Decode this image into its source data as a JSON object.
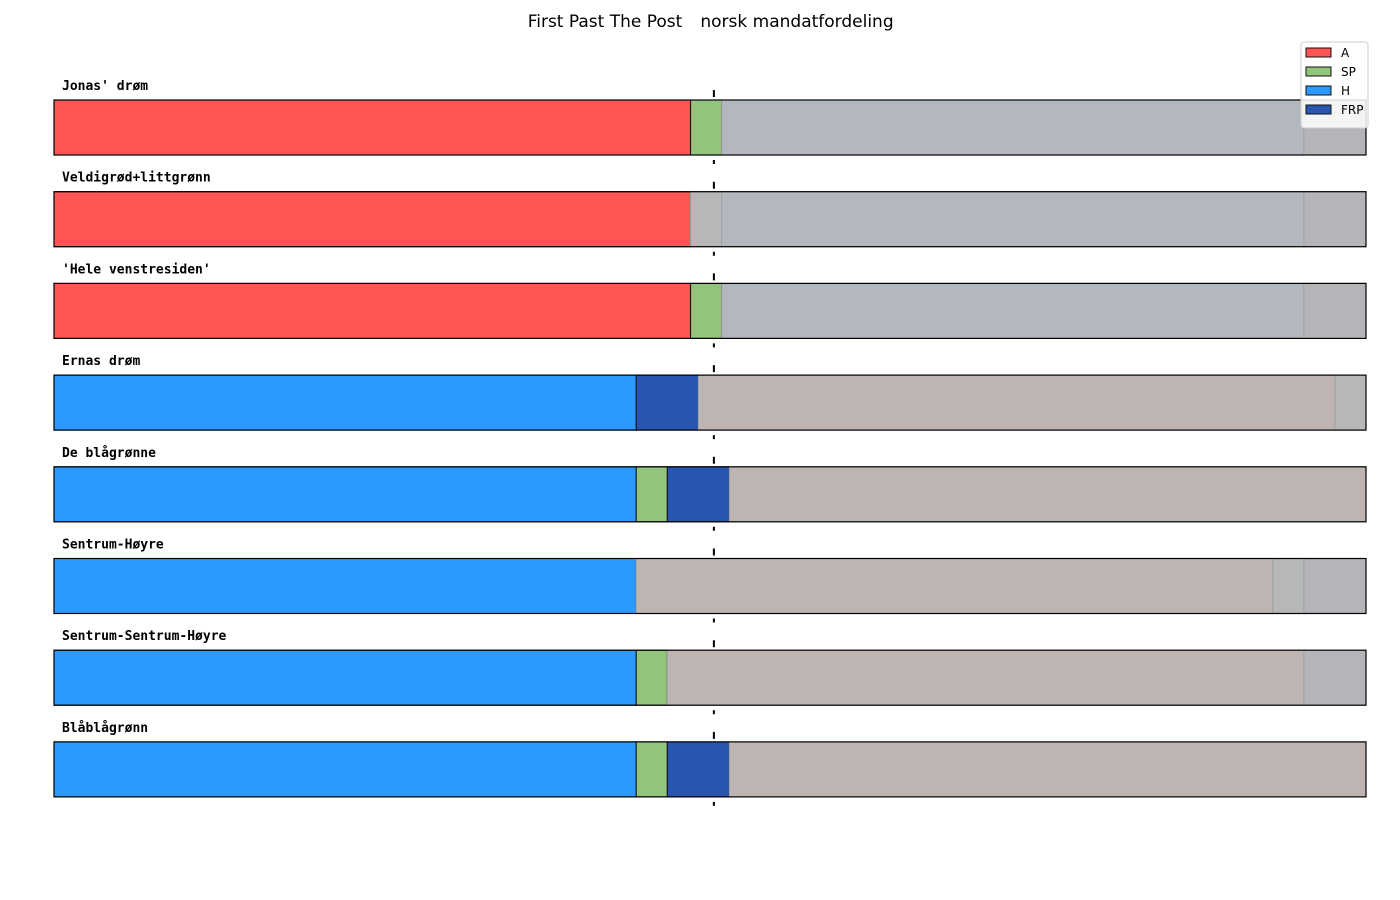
{
  "chart_data": {
    "type": "bar",
    "orientation": "horizontal-stacked",
    "title_left": "First Past The Post",
    "title_right": "norsk mandatfordeling",
    "xlim": [
      0,
      169
    ],
    "majority_line": 85,
    "parties": [
      {
        "name": "A",
        "color": "#ff5555"
      },
      {
        "name": "SP",
        "color": "#93c47d"
      },
      {
        "name": "H",
        "color": "#2b99ff"
      },
      {
        "name": "FRP",
        "color": "#2855b0"
      }
    ],
    "legend_position": "top-right",
    "rows": [
      {
        "label": "Jonas' drøm",
        "segments": [
          {
            "party": "A",
            "value": 82,
            "color": "#ff5555"
          },
          {
            "party": "SP",
            "value": 4,
            "color": "#93c47d"
          },
          {
            "party": "",
            "value": 75,
            "color": "#b3b8bf"
          },
          {
            "party": "",
            "value": 8,
            "color": "#b3b5b8"
          }
        ]
      },
      {
        "label": "Veldigrød+littgrønn",
        "segments": [
          {
            "party": "A",
            "value": 82,
            "color": "#ff5555"
          },
          {
            "party": "",
            "value": 4,
            "color": "#b5b8b6"
          },
          {
            "party": "",
            "value": 75,
            "color": "#b3b8bf"
          },
          {
            "party": "",
            "value": 8,
            "color": "#b3b5b8"
          }
        ]
      },
      {
        "label": "'Hele venstresiden'",
        "segments": [
          {
            "party": "A",
            "value": 82,
            "color": "#ff5555"
          },
          {
            "party": "SP",
            "value": 4,
            "color": "#93c47d"
          },
          {
            "party": "",
            "value": 75,
            "color": "#b3b8bf"
          },
          {
            "party": "",
            "value": 8,
            "color": "#b3b5b8"
          }
        ]
      },
      {
        "label": "Ernas drøm",
        "segments": [
          {
            "party": "H",
            "value": 75,
            "color": "#2b99ff"
          },
          {
            "party": "FRP",
            "value": 8,
            "color": "#2855b0"
          },
          {
            "party": "",
            "value": 82,
            "color": "#beb5b3"
          },
          {
            "party": "",
            "value": 4,
            "color": "#b5b8b6"
          }
        ]
      },
      {
        "label": "De blågrønne",
        "segments": [
          {
            "party": "H",
            "value": 75,
            "color": "#2b99ff"
          },
          {
            "party": "SP",
            "value": 4,
            "color": "#93c47d"
          },
          {
            "party": "FRP",
            "value": 8,
            "color": "#2855b0"
          },
          {
            "party": "",
            "value": 82,
            "color": "#beb5b3"
          }
        ]
      },
      {
        "label": "Sentrum-Høyre",
        "segments": [
          {
            "party": "H",
            "value": 75,
            "color": "#2b99ff"
          },
          {
            "party": "",
            "value": 82,
            "color": "#beb5b3"
          },
          {
            "party": "",
            "value": 4,
            "color": "#b5b8b6"
          },
          {
            "party": "",
            "value": 8,
            "color": "#b3b5b8"
          }
        ]
      },
      {
        "label": "Sentrum-Sentrum-Høyre",
        "segments": [
          {
            "party": "H",
            "value": 75,
            "color": "#2b99ff"
          },
          {
            "party": "SP",
            "value": 4,
            "color": "#93c47d"
          },
          {
            "party": "",
            "value": 82,
            "color": "#beb5b3"
          },
          {
            "party": "",
            "value": 8,
            "color": "#b3b5b8"
          }
        ]
      },
      {
        "label": "Blåblågrønn",
        "segments": [
          {
            "party": "H",
            "value": 75,
            "color": "#2b99ff"
          },
          {
            "party": "SP",
            "value": 4,
            "color": "#93c47d"
          },
          {
            "party": "FRP",
            "value": 8,
            "color": "#2855b0"
          },
          {
            "party": "",
            "value": 82,
            "color": "#beb5b3"
          }
        ]
      }
    ]
  }
}
